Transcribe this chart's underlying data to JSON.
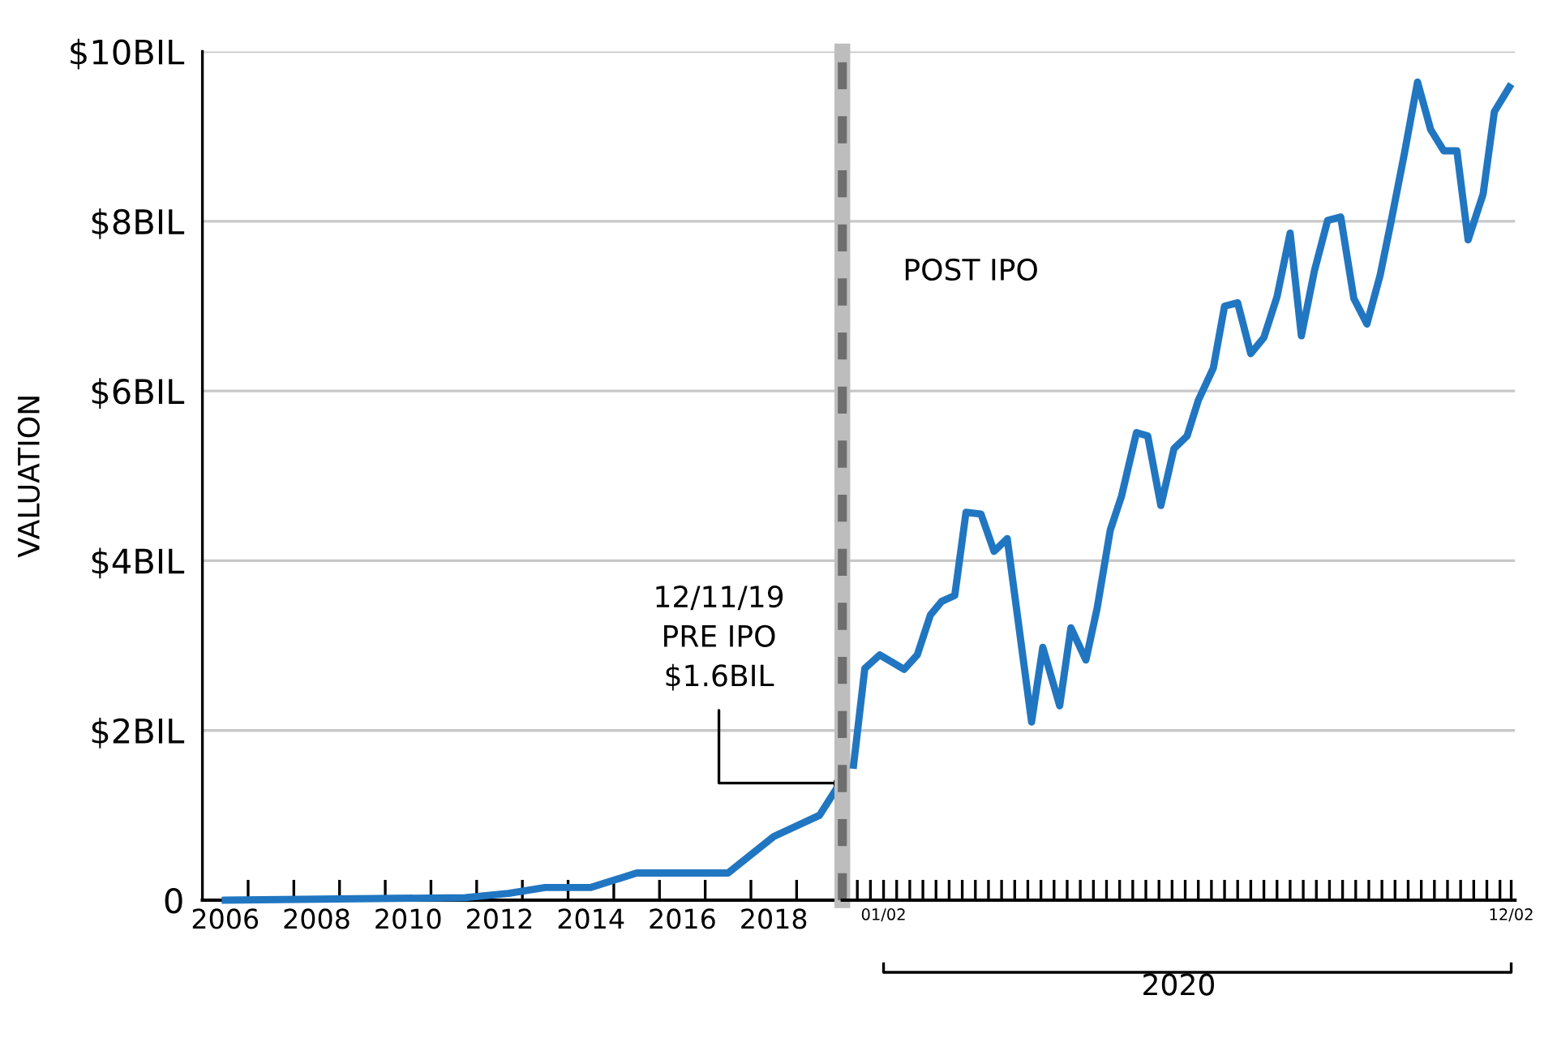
{
  "chart_data": [
    {
      "type": "line",
      "ylabel": "VALUATION",
      "x": [
        2006,
        2011.25,
        2012.2,
        2013,
        2014,
        2015,
        2017,
        2018,
        2019,
        2019.45
      ],
      "series": [
        {
          "color": "#2176c1",
          "values": [
            0,
            0.03,
            0.08,
            0.15,
            0.15,
            0.32,
            0.32,
            0.75,
            1.0,
            1.38
          ]
        }
      ],
      "xlim": [
        2005.5,
        2019.5
      ],
      "xticks": [
        2006,
        {
          "value": 2006.5,
          "label": null
        },
        {
          "value": 2007.5,
          "label": null
        },
        2008,
        {
          "value": 2008.5,
          "label": null
        },
        {
          "value": 2009.5,
          "label": null
        },
        2010,
        {
          "value": 2010.5,
          "label": null
        },
        {
          "value": 2011.5,
          "label": null
        },
        2012,
        {
          "value": 2012.5,
          "label": null
        },
        {
          "value": 2013.5,
          "label": null
        },
        2014,
        {
          "value": 2014.5,
          "label": null
        },
        {
          "value": 2015.5,
          "label": null
        },
        2016,
        {
          "value": 2016.5,
          "label": null
        },
        {
          "value": 2017.5,
          "label": null
        },
        2018,
        {
          "value": 2018.5,
          "label": null
        }
      ],
      "ylim": [
        0,
        10
      ],
      "yticks": [
        0,
        {
          "value": 2,
          "label": "$2BIL"
        },
        {
          "value": 4,
          "label": "$4BIL"
        },
        {
          "value": 6,
          "label": "$6BIL"
        },
        {
          "value": 8,
          "label": "$8BIL"
        },
        {
          "value": 10,
          "label": "$10BIL"
        }
      ],
      "grid": "y",
      "legend": false,
      "marker": "none",
      "line_style": "solid",
      "annotations": [
        {
          "text": "12/11/19\nPRE IPO\n$1.6BIL",
          "x": 2019.45,
          "y": 1.38
        }
      ]
    },
    {
      "type": "line",
      "xlabel": "2020",
      "x": [
        "2019-12-17",
        "2019-12-23",
        "2019-12-31",
        "2020-01-13",
        "2020-01-20",
        "2020-01-27",
        "2020-02-02",
        "2020-02-09",
        "2020-02-15",
        "2020-02-23",
        "2020-03-01",
        "2020-03-08",
        "2020-03-21",
        "2020-03-27",
        "2020-04-05",
        "2020-04-11",
        "2020-04-19",
        "2020-04-25",
        "2020-05-02",
        "2020-05-08",
        "2020-05-16",
        "2020-05-22",
        "2020-05-29",
        "2020-06-05",
        "2020-06-12",
        "2020-06-18",
        "2020-06-26",
        "2020-07-02",
        "2020-07-09",
        "2020-07-16",
        "2020-07-23",
        "2020-07-30",
        "2020-08-06",
        "2020-08-12",
        "2020-08-19",
        "2020-08-26",
        "2020-09-02",
        "2020-09-09",
        "2020-09-16",
        "2020-09-23",
        "2020-09-29",
        "2020-10-06",
        "2020-10-13",
        "2020-10-20",
        "2020-10-27",
        "2020-11-03",
        "2020-11-09",
        "2020-11-17",
        "2020-11-23",
        "2020-12-01"
      ],
      "series": [
        {
          "color": "#2176c1",
          "values": [
            1.59,
            2.73,
            2.89,
            2.72,
            2.89,
            3.36,
            3.52,
            3.59,
            4.57,
            4.55,
            4.11,
            4.26,
            2.1,
            2.98,
            2.29,
            3.21,
            2.83,
            3.44,
            4.36,
            4.76,
            5.51,
            5.47,
            4.65,
            5.32,
            5.47,
            5.89,
            6.27,
            7.0,
            7.04,
            6.44,
            6.63,
            7.11,
            7.86,
            6.65,
            7.42,
            8.01,
            8.05,
            7.09,
            6.79,
            7.36,
            8.01,
            8.8,
            9.64,
            9.08,
            8.83,
            8.83,
            7.78,
            8.32,
            9.29,
            9.58
          ]
        }
      ],
      "xlim": [
        "2019-12-11",
        "2020-12-04"
      ],
      "xticks": [
        {
          "value": "2019-12-19",
          "label": null
        },
        {
          "value": "2019-12-26",
          "label": null
        },
        {
          "value": "2020-01-02",
          "label": "01/02"
        },
        {
          "value": "2020-01-09",
          "label": null
        },
        {
          "value": "2020-01-16",
          "label": null
        },
        {
          "value": "2020-01-23",
          "label": null
        },
        {
          "value": "2020-01-30",
          "label": null
        },
        {
          "value": "2020-02-06",
          "label": null
        },
        {
          "value": "2020-02-13",
          "label": null
        },
        {
          "value": "2020-02-20",
          "label": null
        },
        {
          "value": "2020-02-27",
          "label": null
        },
        {
          "value": "2020-03-05",
          "label": null
        },
        {
          "value": "2020-03-12",
          "label": null
        },
        {
          "value": "2020-03-19",
          "label": null
        },
        {
          "value": "2020-03-26",
          "label": null
        },
        {
          "value": "2020-04-02",
          "label": null
        },
        {
          "value": "2020-04-09",
          "label": null
        },
        {
          "value": "2020-04-16",
          "label": null
        },
        {
          "value": "2020-04-23",
          "label": null
        },
        {
          "value": "2020-04-30",
          "label": null
        },
        {
          "value": "2020-05-07",
          "label": null
        },
        {
          "value": "2020-05-14",
          "label": null
        },
        {
          "value": "2020-05-21",
          "label": null
        },
        {
          "value": "2020-05-28",
          "label": null
        },
        {
          "value": "2020-06-04",
          "label": null
        },
        {
          "value": "2020-06-11",
          "label": null
        },
        {
          "value": "2020-06-18",
          "label": null
        },
        {
          "value": "2020-06-25",
          "label": null
        },
        {
          "value": "2020-07-02",
          "label": null
        },
        {
          "value": "2020-07-09",
          "label": null
        },
        {
          "value": "2020-07-16",
          "label": null
        },
        {
          "value": "2020-07-23",
          "label": null
        },
        {
          "value": "2020-07-30",
          "label": null
        },
        {
          "value": "2020-08-06",
          "label": null
        },
        {
          "value": "2020-08-13",
          "label": null
        },
        {
          "value": "2020-08-20",
          "label": null
        },
        {
          "value": "2020-08-27",
          "label": null
        },
        {
          "value": "2020-09-03",
          "label": null
        },
        {
          "value": "2020-09-10",
          "label": null
        },
        {
          "value": "2020-09-17",
          "label": null
        },
        {
          "value": "2020-09-24",
          "label": null
        },
        {
          "value": "2020-10-01",
          "label": null
        },
        {
          "value": "2020-10-08",
          "label": null
        },
        {
          "value": "2020-10-15",
          "label": null
        },
        {
          "value": "2020-10-22",
          "label": null
        },
        {
          "value": "2020-10-29",
          "label": null
        },
        {
          "value": "2020-11-05",
          "label": null
        },
        {
          "value": "2020-11-12",
          "label": null
        },
        {
          "value": "2020-11-19",
          "label": null
        },
        {
          "value": "2020-11-26",
          "label": null
        },
        {
          "value": "2020-12-02",
          "label": "12/02"
        }
      ],
      "ylim": [
        0,
        10
      ],
      "yticks": [
        0,
        2,
        4,
        6,
        8,
        10
      ],
      "tick_labels": "x",
      "grid": "y",
      "legend": false,
      "marker": "none",
      "line_style": "solid",
      "ref_lines": [
        {
          "axis": "x",
          "value": "2019-12-11",
          "color": "#6e6e6e",
          "line_style": "dashed"
        }
      ],
      "annotations": [
        "POST IPO"
      ]
    }
  ]
}
